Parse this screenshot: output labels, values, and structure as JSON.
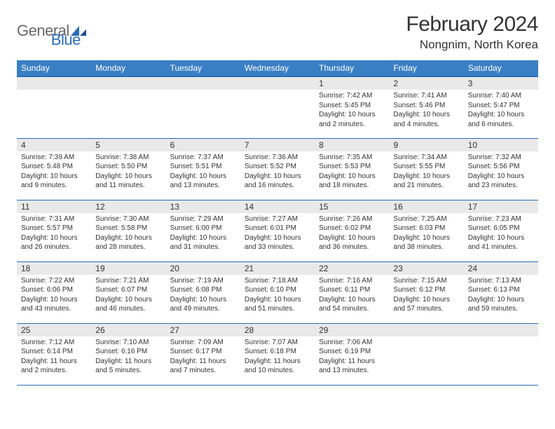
{
  "brand": {
    "general": "General",
    "blue": "Blue"
  },
  "title": "February 2024",
  "location": "Nongnim, North Korea",
  "colors": {
    "header_bg": "#3a7fc4",
    "header_border": "#2a6db8",
    "row_divider": "#2a6db8",
    "daynum_bg": "#e9e9e9",
    "text": "#333333",
    "logo_gray": "#6a6a6a",
    "logo_blue": "#2a6db8",
    "background": "#ffffff"
  },
  "typography": {
    "title_fontsize": 30,
    "location_fontsize": 17,
    "header_fontsize": 12,
    "daynum_fontsize": 12,
    "detail_fontsize": 10,
    "logo_fontsize": 22
  },
  "weekdays": [
    "Sunday",
    "Monday",
    "Tuesday",
    "Wednesday",
    "Thursday",
    "Friday",
    "Saturday"
  ],
  "weeks": [
    [
      null,
      null,
      null,
      null,
      {
        "n": "1",
        "sr": "7:42 AM",
        "ss": "5:45 PM",
        "dl": "10 hours and 2 minutes."
      },
      {
        "n": "2",
        "sr": "7:41 AM",
        "ss": "5:46 PM",
        "dl": "10 hours and 4 minutes."
      },
      {
        "n": "3",
        "sr": "7:40 AM",
        "ss": "5:47 PM",
        "dl": "10 hours and 6 minutes."
      }
    ],
    [
      {
        "n": "4",
        "sr": "7:39 AM",
        "ss": "5:48 PM",
        "dl": "10 hours and 9 minutes."
      },
      {
        "n": "5",
        "sr": "7:38 AM",
        "ss": "5:50 PM",
        "dl": "10 hours and 11 minutes."
      },
      {
        "n": "6",
        "sr": "7:37 AM",
        "ss": "5:51 PM",
        "dl": "10 hours and 13 minutes."
      },
      {
        "n": "7",
        "sr": "7:36 AM",
        "ss": "5:52 PM",
        "dl": "10 hours and 16 minutes."
      },
      {
        "n": "8",
        "sr": "7:35 AM",
        "ss": "5:53 PM",
        "dl": "10 hours and 18 minutes."
      },
      {
        "n": "9",
        "sr": "7:34 AM",
        "ss": "5:55 PM",
        "dl": "10 hours and 21 minutes."
      },
      {
        "n": "10",
        "sr": "7:32 AM",
        "ss": "5:56 PM",
        "dl": "10 hours and 23 minutes."
      }
    ],
    [
      {
        "n": "11",
        "sr": "7:31 AM",
        "ss": "5:57 PM",
        "dl": "10 hours and 26 minutes."
      },
      {
        "n": "12",
        "sr": "7:30 AM",
        "ss": "5:58 PM",
        "dl": "10 hours and 28 minutes."
      },
      {
        "n": "13",
        "sr": "7:29 AM",
        "ss": "6:00 PM",
        "dl": "10 hours and 31 minutes."
      },
      {
        "n": "14",
        "sr": "7:27 AM",
        "ss": "6:01 PM",
        "dl": "10 hours and 33 minutes."
      },
      {
        "n": "15",
        "sr": "7:26 AM",
        "ss": "6:02 PM",
        "dl": "10 hours and 36 minutes."
      },
      {
        "n": "16",
        "sr": "7:25 AM",
        "ss": "6:03 PM",
        "dl": "10 hours and 38 minutes."
      },
      {
        "n": "17",
        "sr": "7:23 AM",
        "ss": "6:05 PM",
        "dl": "10 hours and 41 minutes."
      }
    ],
    [
      {
        "n": "18",
        "sr": "7:22 AM",
        "ss": "6:06 PM",
        "dl": "10 hours and 43 minutes."
      },
      {
        "n": "19",
        "sr": "7:21 AM",
        "ss": "6:07 PM",
        "dl": "10 hours and 46 minutes."
      },
      {
        "n": "20",
        "sr": "7:19 AM",
        "ss": "6:08 PM",
        "dl": "10 hours and 49 minutes."
      },
      {
        "n": "21",
        "sr": "7:18 AM",
        "ss": "6:10 PM",
        "dl": "10 hours and 51 minutes."
      },
      {
        "n": "22",
        "sr": "7:16 AM",
        "ss": "6:11 PM",
        "dl": "10 hours and 54 minutes."
      },
      {
        "n": "23",
        "sr": "7:15 AM",
        "ss": "6:12 PM",
        "dl": "10 hours and 57 minutes."
      },
      {
        "n": "24",
        "sr": "7:13 AM",
        "ss": "6:13 PM",
        "dl": "10 hours and 59 minutes."
      }
    ],
    [
      {
        "n": "25",
        "sr": "7:12 AM",
        "ss": "6:14 PM",
        "dl": "11 hours and 2 minutes."
      },
      {
        "n": "26",
        "sr": "7:10 AM",
        "ss": "6:16 PM",
        "dl": "11 hours and 5 minutes."
      },
      {
        "n": "27",
        "sr": "7:09 AM",
        "ss": "6:17 PM",
        "dl": "11 hours and 7 minutes."
      },
      {
        "n": "28",
        "sr": "7:07 AM",
        "ss": "6:18 PM",
        "dl": "11 hours and 10 minutes."
      },
      {
        "n": "29",
        "sr": "7:06 AM",
        "ss": "6:19 PM",
        "dl": "11 hours and 13 minutes."
      },
      null,
      null
    ]
  ],
  "labels": {
    "sunrise_prefix": "Sunrise: ",
    "sunset_prefix": "Sunset: ",
    "daylight_prefix": "Daylight: "
  }
}
